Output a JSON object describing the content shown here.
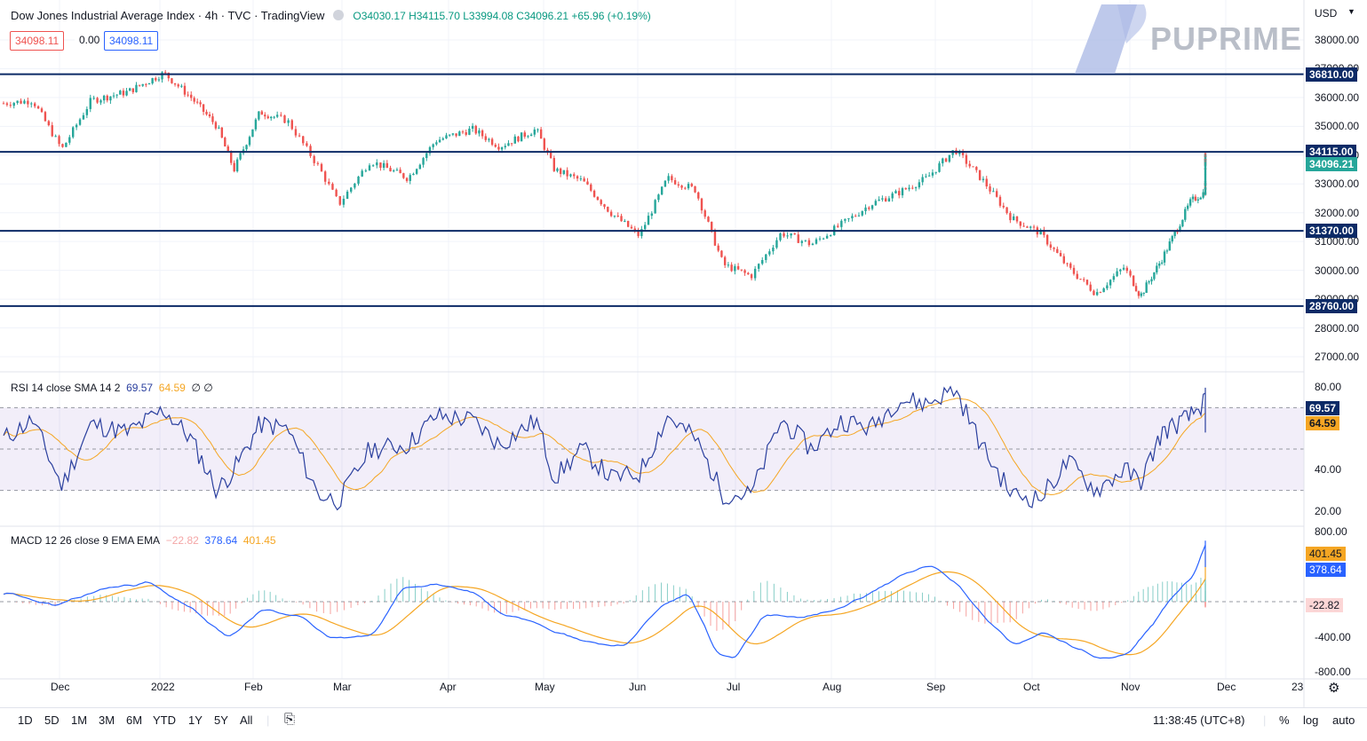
{
  "header": {
    "title": "Dow Jones Industrial Average Index · 4h · TVC · TradingView",
    "ohlc": "O34030.17 H34115.70 L33994.08 C34096.21 +65.96 (+0.19%)",
    "bid": "34098.11",
    "spread": "0.00",
    "ask": "34098.11"
  },
  "currency": "USD",
  "logo_text": "PUPRIME",
  "rsi_label": {
    "name": "RSI 14 close SMA 14 2",
    "v1": "69.57",
    "v2": "64.59",
    "v3": "∅ ∅"
  },
  "macd_label": {
    "name": "MACD 12 26 close 9 EMA EMA",
    "v1": "−22.82",
    "v2": "378.64",
    "v3": "401.45"
  },
  "price_axis": [
    "38000.00",
    "37000.00",
    "36000.00",
    "35000.00",
    "34000.00",
    "33000.00",
    "32000.00",
    "31000.00",
    "30000.00",
    "29000.00",
    "28000.00",
    "27000.00"
  ],
  "rsi_axis": [
    "80.00",
    "40.00",
    "20.00"
  ],
  "macd_axis": [
    "800.00",
    "-400.00",
    "-800.00"
  ],
  "levels": [
    {
      "value": 36810,
      "label": "36810.00"
    },
    {
      "value": 34115,
      "label": "34115.00"
    },
    {
      "value": 31370,
      "label": "31370.00"
    },
    {
      "value": 28760,
      "label": "28760.00"
    }
  ],
  "last_price": "34096.21",
  "rsi_values": {
    "rsi": "69.57",
    "sma": "64.59"
  },
  "macd_values": {
    "signal": "401.45",
    "macd": "378.64",
    "hist": "-22.82"
  },
  "time_axis": [
    "Dec",
    "2022",
    "Feb",
    "Mar",
    "Apr",
    "May",
    "Jun",
    "Jul",
    "Aug",
    "Sep",
    "Oct",
    "Nov",
    "Dec",
    "23"
  ],
  "ranges": [
    "1D",
    "5D",
    "1M",
    "3M",
    "6M",
    "YTD",
    "1Y",
    "5Y",
    "All"
  ],
  "clock": "11:38:45 (UTC+8)",
  "scale_options": [
    "%",
    "log",
    "auto"
  ],
  "colors": {
    "up": "#26a69a",
    "down": "#ef5350",
    "rsi": "#2a3f9e",
    "rsi_sma": "#f5a623",
    "macd": "#2962ff",
    "signal": "#f5a623",
    "level": "#0c2a66"
  },
  "chart_data": {
    "type": "candlestick",
    "title": "Dow Jones Industrial Average Index · 4h · TVC · TradingView",
    "x": [
      "Dec",
      "2022",
      "Feb",
      "Mar",
      "Apr",
      "May",
      "Jun",
      "Jul",
      "Aug",
      "Sep",
      "Oct",
      "Nov",
      "Dec"
    ],
    "price_path": [
      [
        0,
        35800
      ],
      [
        0.3,
        35900
      ],
      [
        0.6,
        34200
      ],
      [
        0.9,
        35900
      ],
      [
        1.3,
        36200
      ],
      [
        1.7,
        36850
      ],
      [
        2.0,
        36000
      ],
      [
        2.3,
        35000
      ],
      [
        2.5,
        33500
      ],
      [
        2.8,
        35500
      ],
      [
        3.1,
        35200
      ],
      [
        3.4,
        33600
      ],
      [
        3.6,
        32300
      ],
      [
        3.9,
        33800
      ],
      [
        4.3,
        33200
      ],
      [
        4.6,
        34500
      ],
      [
        5.0,
        34900
      ],
      [
        5.3,
        34300
      ],
      [
        5.7,
        34900
      ],
      [
        5.9,
        33500
      ],
      [
        6.2,
        33100
      ],
      [
        6.5,
        32000
      ],
      [
        6.8,
        31200
      ],
      [
        7.1,
        33200
      ],
      [
        7.4,
        32800
      ],
      [
        7.7,
        30200
      ],
      [
        8.0,
        29800
      ],
      [
        8.3,
        31300
      ],
      [
        8.6,
        30900
      ],
      [
        8.9,
        31600
      ],
      [
        9.2,
        32300
      ],
      [
        9.5,
        32700
      ],
      [
        9.8,
        33200
      ],
      [
        10.1,
        34200
      ],
      [
        10.4,
        33100
      ],
      [
        10.7,
        31800
      ],
      [
        11.0,
        31300
      ],
      [
        11.3,
        30100
      ],
      [
        11.6,
        29200
      ],
      [
        11.9,
        30100
      ],
      [
        12.1,
        29100
      ],
      [
        12.4,
        30400
      ],
      [
        12.8,
        32400
      ],
      [
        13.1,
        32900
      ],
      [
        13.4,
        33700
      ],
      [
        13.7,
        33800
      ],
      [
        13.9,
        34096
      ]
    ],
    "rsi_path": [
      [
        0,
        55
      ],
      [
        0.3,
        64
      ],
      [
        0.6,
        32
      ],
      [
        0.9,
        62
      ],
      [
        1.3,
        58
      ],
      [
        1.7,
        69
      ],
      [
        2.0,
        55
      ],
      [
        2.3,
        30
      ],
      [
        2.5,
        40
      ],
      [
        2.8,
        62
      ],
      [
        3.1,
        60
      ],
      [
        3.4,
        28
      ],
      [
        3.6,
        25
      ],
      [
        3.9,
        50
      ],
      [
        4.3,
        52
      ],
      [
        4.6,
        66
      ],
      [
        5.0,
        64
      ],
      [
        5.3,
        52
      ],
      [
        5.7,
        64
      ],
      [
        5.9,
        36
      ],
      [
        6.2,
        50
      ],
      [
        6.5,
        36
      ],
      [
        6.8,
        38
      ],
      [
        7.1,
        66
      ],
      [
        7.4,
        55
      ],
      [
        7.7,
        28
      ],
      [
        8.0,
        28
      ],
      [
        8.3,
        64
      ],
      [
        8.6,
        50
      ],
      [
        8.9,
        64
      ],
      [
        9.2,
        60
      ],
      [
        9.5,
        74
      ],
      [
        9.8,
        72
      ],
      [
        10.1,
        79
      ],
      [
        10.4,
        50
      ],
      [
        10.7,
        28
      ],
      [
        11.0,
        26
      ],
      [
        11.3,
        44
      ],
      [
        11.6,
        30
      ],
      [
        11.9,
        40
      ],
      [
        12.1,
        34
      ],
      [
        12.4,
        58
      ],
      [
        12.8,
        66
      ],
      [
        13.1,
        77
      ],
      [
        13.4,
        62
      ],
      [
        13.7,
        68
      ],
      [
        13.9,
        69.57
      ]
    ],
    "macd_path": [
      [
        0,
        100
      ],
      [
        0.5,
        -50
      ],
      [
        1.0,
        150
      ],
      [
        1.5,
        220
      ],
      [
        2.0,
        -100
      ],
      [
        2.4,
        -420
      ],
      [
        2.8,
        -80
      ],
      [
        3.2,
        -180
      ],
      [
        3.5,
        -420
      ],
      [
        3.9,
        -380
      ],
      [
        4.2,
        150
      ],
      [
        4.6,
        200
      ],
      [
        5.0,
        100
      ],
      [
        5.3,
        -150
      ],
      [
        5.6,
        -200
      ],
      [
        5.9,
        -350
      ],
      [
        6.2,
        -450
      ],
      [
        6.6,
        -520
      ],
      [
        7.0,
        -50
      ],
      [
        7.3,
        100
      ],
      [
        7.6,
        -600
      ],
      [
        7.8,
        -650
      ],
      [
        8.1,
        -150
      ],
      [
        8.5,
        -180
      ],
      [
        8.8,
        -100
      ],
      [
        9.2,
        120
      ],
      [
        9.5,
        300
      ],
      [
        9.8,
        420
      ],
      [
        10.1,
        200
      ],
      [
        10.4,
        -200
      ],
      [
        10.7,
        -500
      ],
      [
        11.0,
        -350
      ],
      [
        11.3,
        -500
      ],
      [
        11.6,
        -650
      ],
      [
        11.9,
        -600
      ],
      [
        12.2,
        -300
      ],
      [
        12.5,
        50
      ],
      [
        12.8,
        300
      ],
      [
        13.0,
        720
      ],
      [
        13.3,
        520
      ],
      [
        13.6,
        500
      ],
      [
        13.9,
        378.64
      ]
    ],
    "levels": [
      36810,
      34115,
      31370,
      28760
    ],
    "ylim": [
      26500,
      38500
    ]
  }
}
